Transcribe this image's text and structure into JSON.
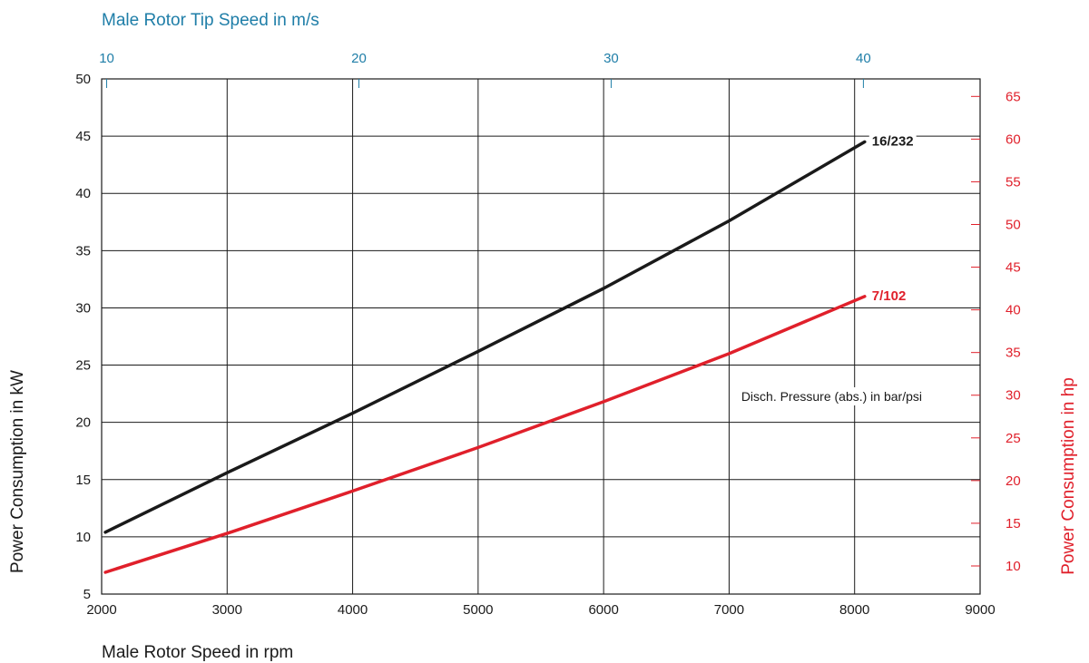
{
  "chart_data": {
    "type": "line",
    "top_axis_title": "Male Rotor Tip Speed in m/s",
    "top_ticks": [
      10,
      20,
      30,
      40
    ],
    "top_tick_rpm": [
      2040,
      4050,
      6060,
      8070
    ],
    "xlabel": "Male Rotor Speed in rpm",
    "ylabel": "Power Consumption in kW",
    "ylabel_right": "Power Consumption in hp",
    "xlim": [
      2000,
      9000
    ],
    "ylim": [
      5,
      50
    ],
    "x_ticks": [
      2000,
      3000,
      4000,
      5000,
      6000,
      7000,
      8000,
      9000
    ],
    "y_ticks": [
      5,
      10,
      15,
      20,
      25,
      30,
      35,
      40,
      45,
      50
    ],
    "right_ticks": [
      10,
      15,
      20,
      25,
      30,
      35,
      40,
      45,
      50,
      55,
      60,
      65
    ],
    "grid": true,
    "annotation": "Disch. Pressure (abs.) in bar/psi",
    "series": [
      {
        "name": "16/232",
        "color": "#1a1a1a",
        "x": [
          2030,
          3000,
          4000,
          5000,
          6000,
          7000,
          8080
        ],
        "y": [
          10.4,
          15.6,
          20.8,
          26.2,
          31.7,
          37.6,
          44.5
        ]
      },
      {
        "name": "7/102",
        "color": "#e0202b",
        "x": [
          2030,
          3000,
          4000,
          5000,
          6000,
          7000,
          8080
        ],
        "y": [
          6.9,
          10.3,
          14.0,
          17.8,
          21.8,
          26.0,
          31.0
        ]
      }
    ],
    "colors": {
      "axis": "#1a1a1a",
      "right_axis": "#e0202b",
      "top_axis": "#1f7ea8"
    }
  }
}
